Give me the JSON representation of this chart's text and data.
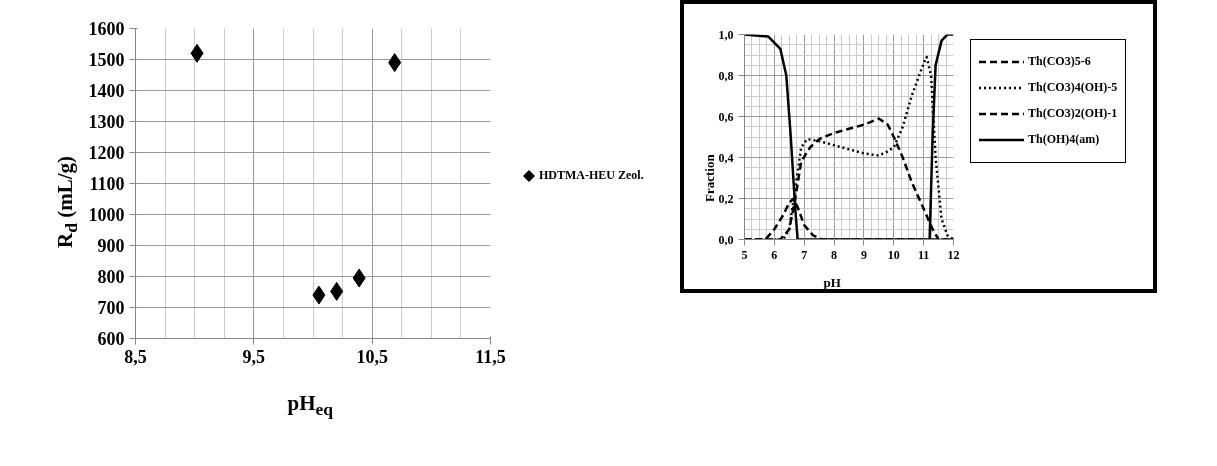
{
  "chart_data": [
    {
      "type": "scatter",
      "xlabel": "pH$_{eq}$",
      "ylabel": "R$_{d}$ (mL/g)",
      "marker": "diamond",
      "grid": true,
      "legend": "right",
      "xlim": [
        8.5,
        11.5
      ],
      "ylim": [
        600,
        1600
      ],
      "xticks": [
        {
          "value": 8.5,
          "label": "8,5"
        },
        {
          "value": 9.5,
          "label": "9,5"
        },
        {
          "value": 10.5,
          "label": "10,5"
        },
        {
          "value": 11.5,
          "label": "11,5"
        }
      ],
      "yticks": [
        600,
        700,
        800,
        900,
        1000,
        1100,
        1200,
        1300,
        1400,
        1500,
        1600
      ],
      "series": [
        {
          "name": "HDTMA-HEU Zeol.",
          "color": "#000000",
          "x": [
            9.02,
            10.05,
            10.2,
            10.39,
            10.69
          ],
          "values": [
            1520,
            740,
            752,
            795,
            1490
          ]
        }
      ]
    },
    {
      "type": "line",
      "xlabel": "pH",
      "ylabel": "Fraction",
      "marker": "none",
      "grid": true,
      "legend": "right",
      "xlim": [
        5,
        12
      ],
      "ylim": [
        0,
        1
      ],
      "xticks": [
        5,
        6,
        7,
        8,
        9,
        10,
        11,
        12
      ],
      "yticks": [
        {
          "value": 0,
          "label": "0,0"
        },
        {
          "value": 0.2,
          "label": "0,2"
        },
        {
          "value": 0.4,
          "label": "0,4"
        },
        {
          "value": 0.6,
          "label": "0,6"
        },
        {
          "value": 0.8,
          "label": "0,8"
        },
        {
          "value": 1,
          "label": "1,0"
        }
      ],
      "series": [
        {
          "name": "Th(CO3)5-6",
          "color": "#000000",
          "line_style": "dashed",
          "x": [
            5,
            6.2,
            6.5,
            6.7,
            6.9,
            7.2,
            7.5,
            8,
            8.5,
            9,
            9.5,
            9.8,
            10,
            10.3,
            10.6,
            11,
            11.3,
            11.5,
            12
          ],
          "values": [
            0,
            0,
            0.05,
            0.2,
            0.38,
            0.45,
            0.49,
            0.52,
            0.54,
            0.56,
            0.59,
            0.56,
            0.5,
            0.4,
            0.28,
            0.15,
            0.05,
            0,
            0
          ]
        },
        {
          "name": "Th(CO3)4(OH)-5",
          "color": "#000000",
          "line_style": "dotted",
          "x": [
            5,
            6.3,
            6.5,
            6.7,
            6.9,
            7.1,
            7.5,
            8,
            8.5,
            9,
            9.5,
            9.8,
            10,
            10.3,
            10.6,
            11,
            11.1,
            11.25,
            11.4,
            11.6,
            11.8,
            12
          ],
          "values": [
            0,
            0,
            0.05,
            0.25,
            0.45,
            0.49,
            0.48,
            0.46,
            0.44,
            0.42,
            0.41,
            0.43,
            0.45,
            0.55,
            0.7,
            0.86,
            0.89,
            0.8,
            0.4,
            0.1,
            0.02,
            0
          ]
        },
        {
          "name": "Th(CO3)2(OH)-1",
          "color": "#000000",
          "line_style": "dashed",
          "x": [
            5,
            5.7,
            6,
            6.3,
            6.5,
            6.65,
            6.8,
            7,
            7.3,
            7.6,
            12
          ],
          "values": [
            0,
            0,
            0.05,
            0.12,
            0.18,
            0.2,
            0.15,
            0.07,
            0.02,
            0,
            0
          ]
        },
        {
          "name": "Th(OH)4(am)",
          "color": "#000000",
          "line_style": "solid",
          "x": [
            5,
            5.8,
            6.2,
            6.4,
            6.55,
            6.7,
            6.78,
            11.2,
            11.3,
            11.4,
            11.6,
            11.8,
            12
          ],
          "values": [
            1,
            0.99,
            0.93,
            0.8,
            0.5,
            0.15,
            0,
            0,
            0.5,
            0.85,
            0.97,
            1,
            1
          ]
        }
      ]
    }
  ]
}
